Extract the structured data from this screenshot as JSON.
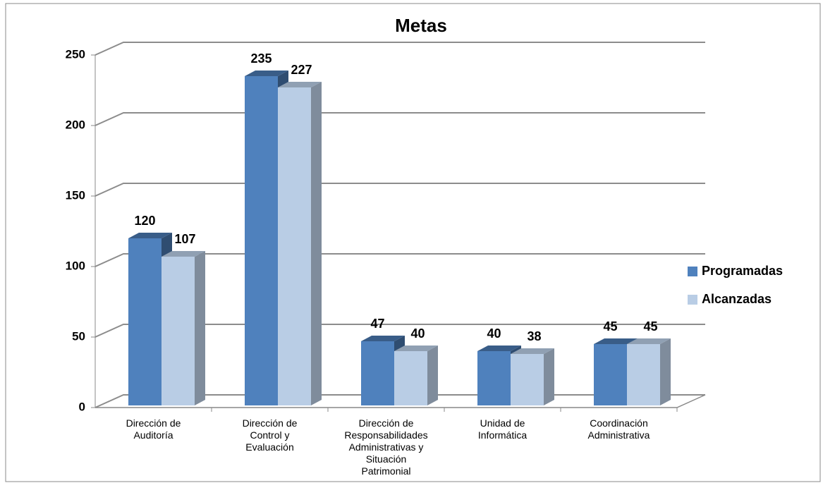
{
  "chart_data": {
    "type": "bar3d",
    "title": "Metas",
    "categories": [
      "Dirección de Auditoría",
      "Dirección de Control y Evaluación",
      "Dirección de Responsabilidades Administrativas y Situación Patrimonial",
      "Unidad de Informática",
      "Coordinación Administrativa"
    ],
    "series": [
      {
        "name": "Programadas",
        "color": "#4f81bd",
        "values": [
          120,
          235,
          47,
          40,
          45
        ]
      },
      {
        "name": "Alcanzadas",
        "color": "#b9cde5",
        "values": [
          107,
          227,
          40,
          38,
          45
        ]
      }
    ],
    "ylim": [
      0,
      250
    ],
    "yticks": [
      0,
      50,
      100,
      150,
      200,
      250
    ],
    "grid": true,
    "legend": "right"
  }
}
